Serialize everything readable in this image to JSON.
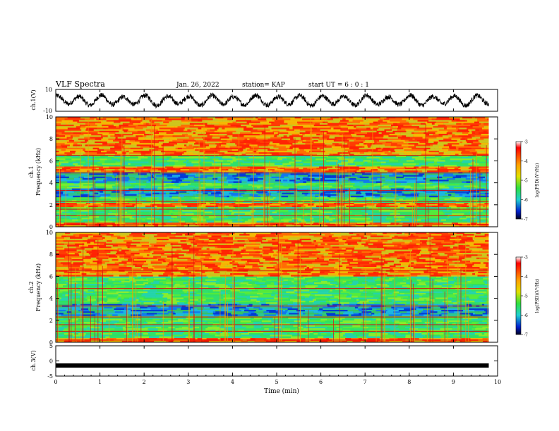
{
  "header": {
    "title": "VLF Spectra",
    "date": "Jan. 26, 2022",
    "station": "station= KAP",
    "start": "start  UT =  6 : 0  : 1"
  },
  "colors": {
    "spectrogram_low": "#0000cc",
    "spectrogram_mid": "#22dd66",
    "spectrogram_high": "#ff2000",
    "trace": "#000000"
  },
  "chart_data": [
    {
      "type": "line",
      "id": "ch1-waveform",
      "ylabel": "ch.1(V)",
      "ylim": [
        -10,
        10
      ],
      "yticks": [
        "10",
        "-10"
      ],
      "xlim": [
        0,
        10
      ],
      "series": [
        {
          "x_range": [
            0,
            9.8
          ],
          "oscillation_period_min": 0.5,
          "amplitude_v": 4
        }
      ]
    },
    {
      "type": "heatmap",
      "id": "ch1-spectrogram",
      "ylabel": "ch.1\nFrequency (kHz)",
      "ylabel_lines": [
        "ch.1",
        "Frequency (kHz)"
      ],
      "ylim": [
        0,
        10
      ],
      "yticks": [
        "0",
        "2",
        "4",
        "6",
        "8",
        "10"
      ],
      "xlim": [
        0,
        10
      ],
      "x_data_extent": [
        0,
        9.8
      ],
      "colorbar": {
        "label": "log(PSD)(V²/Hz)",
        "range": [
          -7,
          -3
        ],
        "ticks": [
          "-3",
          "-4",
          "-5",
          "-6",
          "-7"
        ]
      },
      "bands_khz": [
        {
          "f": [
            0,
            0.4
          ],
          "level": "high"
        },
        {
          "f": [
            0.4,
            1.8
          ],
          "level": "mid"
        },
        {
          "f": [
            1.8,
            2.2
          ],
          "level": "high"
        },
        {
          "f": [
            2.2,
            2.7
          ],
          "level": "mid"
        },
        {
          "f": [
            2.7,
            3.5
          ],
          "level": "low"
        },
        {
          "f": [
            3.5,
            4.0
          ],
          "level": "mid"
        },
        {
          "f": [
            4.0,
            5.0
          ],
          "level": "low"
        },
        {
          "f": [
            5.0,
            5.5
          ],
          "level": "high"
        },
        {
          "f": [
            5.5,
            6.5
          ],
          "level": "mid"
        },
        {
          "f": [
            6.5,
            10
          ],
          "level": "high"
        }
      ]
    },
    {
      "type": "heatmap",
      "id": "ch2-spectrogram",
      "ylabel": "ch.2\nFrequency (kHz)",
      "ylabel_lines": [
        "ch.2",
        "Frequency (kHz)"
      ],
      "ylim": [
        0,
        10
      ],
      "yticks": [
        "0",
        "2",
        "4",
        "6",
        "8",
        "10"
      ],
      "xlim": [
        0,
        10
      ],
      "x_data_extent": [
        0,
        9.8
      ],
      "colorbar": {
        "label": "log(PSD)(V²/Hz)",
        "range": [
          -7,
          -3
        ],
        "ticks": [
          "-3",
          "-4",
          "-5",
          "-6",
          "-7"
        ]
      },
      "bands_khz": [
        {
          "f": [
            0,
            0.4
          ],
          "level": "high"
        },
        {
          "f": [
            0.4,
            2.0
          ],
          "level": "mid"
        },
        {
          "f": [
            2.0,
            2.4
          ],
          "level": "mid"
        },
        {
          "f": [
            2.4,
            3.5
          ],
          "level": "low"
        },
        {
          "f": [
            3.5,
            4.5
          ],
          "level": "mid"
        },
        {
          "f": [
            4.5,
            6.0
          ],
          "level": "mid"
        },
        {
          "f": [
            6.0,
            10
          ],
          "level": "high"
        }
      ]
    },
    {
      "type": "line",
      "id": "ch3-waveform",
      "ylabel": "ch.3(V)",
      "ylim": [
        -5,
        5
      ],
      "yticks": [
        "5",
        "0",
        "-5"
      ],
      "xlim": [
        0,
        10
      ],
      "xticks": [
        "0",
        "1",
        "2",
        "3",
        "4",
        "5",
        "6",
        "7",
        "8",
        "9",
        "10"
      ],
      "xlabel": "Time  (min)",
      "series": [
        {
          "x_range": [
            0,
            9.8
          ],
          "value_v": -1.5
        }
      ]
    }
  ]
}
